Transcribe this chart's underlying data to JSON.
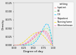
{
  "title": "",
  "xlabel": "Degree of day",
  "ylabel": "Density",
  "settings": [
    "setting",
    "Inpatient",
    "ED",
    "ICU",
    "Outpatient",
    "Nursing home",
    "Other/unknown"
  ],
  "legend_colors": [
    "#f08080",
    "#90ee90",
    "#00bfff",
    "#dda0dd",
    "#ffd700",
    "#ff69b4"
  ],
  "colors": [
    "#f08080",
    "#90ee90",
    "#00bfff",
    "#dda0dd",
    "#ffd700",
    "#ff69b4"
  ],
  "xlim": [
    0.0,
    1.0
  ],
  "ylim": [
    0,
    7
  ],
  "ytick_labels": [
    "0.000",
    "0.025",
    "0.050",
    "0.075",
    "0.100"
  ],
  "xtick_labels": [
    "0.00",
    "0.25",
    "0.50",
    "0.75",
    "1.00"
  ],
  "xticks": [
    0.0,
    0.25,
    0.5,
    0.75,
    1.0
  ],
  "background": "#ebebeb"
}
